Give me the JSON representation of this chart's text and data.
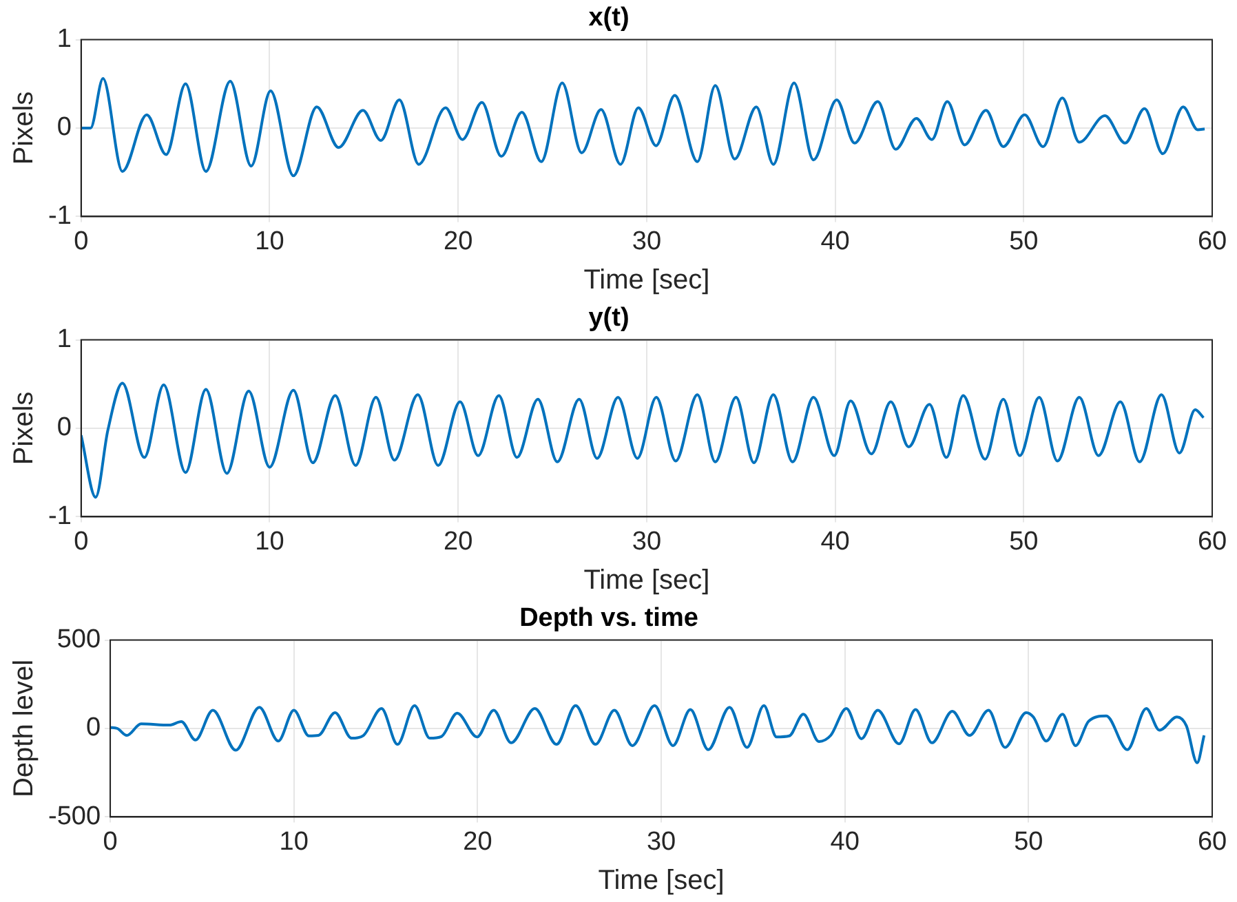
{
  "chart_data": [
    {
      "type": "line",
      "title": "x(t)",
      "xlabel": "Time [sec]",
      "ylabel": "Pixels",
      "color": "#0072bd",
      "grid": true,
      "xlim": [
        0,
        60
      ],
      "xticks": [
        0,
        10,
        20,
        30,
        40,
        50,
        60
      ],
      "ylim": [
        -1,
        1
      ],
      "yticks": [
        -1,
        0,
        1
      ],
      "x": [
        0,
        0.5,
        1.16,
        2.19,
        3.48,
        4.51,
        5.54,
        6.62,
        7.91,
        9.02,
        10.05,
        11.26,
        12.5,
        13.66,
        14.95,
        15.9,
        16.88,
        17.91,
        19.33,
        20.23,
        21.26,
        22.29,
        23.38,
        24.41,
        25.52,
        26.55,
        27.58,
        28.61,
        29.56,
        30.5,
        31.49,
        32.69,
        33.64,
        34.67,
        35.82,
        36.72,
        37.82,
        38.85,
        40.08,
        41.03,
        42.26,
        43.21,
        44.31,
        45.13,
        45.95,
        46.87,
        48.0,
        48.92,
        50.05,
        51.03,
        52.05,
        52.95,
        54.31,
        55.38,
        56.41,
        57.38,
        58.46,
        59.23,
        59.6
      ],
      "values": [
        0,
        0,
        0.56,
        -0.49,
        0.15,
        -0.3,
        0.5,
        -0.49,
        0.53,
        -0.43,
        0.42,
        -0.54,
        0.24,
        -0.22,
        0.2,
        -0.14,
        0.32,
        -0.41,
        0.23,
        -0.13,
        0.29,
        -0.32,
        0.18,
        -0.38,
        0.51,
        -0.28,
        0.21,
        -0.41,
        0.23,
        -0.2,
        0.37,
        -0.38,
        0.48,
        -0.35,
        0.24,
        -0.41,
        0.51,
        -0.36,
        0.32,
        -0.17,
        0.3,
        -0.24,
        0.11,
        -0.13,
        0.3,
        -0.19,
        0.2,
        -0.21,
        0.15,
        -0.21,
        0.34,
        -0.16,
        0.14,
        -0.17,
        0.22,
        -0.29,
        0.24,
        -0.02,
        -0.01
      ]
    },
    {
      "type": "line",
      "title": "y(t)",
      "xlabel": "Time [sec]",
      "ylabel": "Pixels",
      "color": "#0072bd",
      "grid": true,
      "xlim": [
        0,
        60
      ],
      "xticks": [
        0,
        10,
        20,
        30,
        40,
        50,
        60
      ],
      "ylim": [
        -1,
        1
      ],
      "yticks": [
        -1,
        0,
        1
      ],
      "x": [
        0,
        0.77,
        1.42,
        2.19,
        3.35,
        4.38,
        5.54,
        6.62,
        7.73,
        8.89,
        10,
        11.26,
        12.29,
        13.48,
        14.56,
        15.64,
        16.62,
        17.86,
        18.94,
        20.1,
        21.06,
        22.16,
        23.12,
        24.23,
        25.26,
        26.42,
        27.37,
        28.48,
        29.51,
        30.51,
        31.54,
        32.69,
        33.64,
        34.74,
        35.69,
        36.72,
        37.74,
        38.85,
        39.95,
        40.82,
        41.92,
        42.95,
        43.9,
        45,
        45.9,
        46.79,
        47.95,
        48.92,
        49.79,
        50.82,
        51.79,
        52.95,
        53.97,
        55.13,
        56.15,
        57.31,
        58.26,
        59.1,
        59.54
      ],
      "values": [
        -0.08,
        -0.78,
        -0.02,
        0.51,
        -0.33,
        0.49,
        -0.5,
        0.44,
        -0.51,
        0.42,
        -0.44,
        0.43,
        -0.39,
        0.37,
        -0.42,
        0.35,
        -0.36,
        0.38,
        -0.42,
        0.3,
        -0.31,
        0.37,
        -0.33,
        0.33,
        -0.38,
        0.33,
        -0.34,
        0.35,
        -0.34,
        0.35,
        -0.37,
        0.38,
        -0.38,
        0.35,
        -0.39,
        0.38,
        -0.38,
        0.35,
        -0.31,
        0.31,
        -0.29,
        0.3,
        -0.21,
        0.27,
        -0.33,
        0.37,
        -0.35,
        0.33,
        -0.31,
        0.35,
        -0.37,
        0.35,
        -0.31,
        0.3,
        -0.38,
        0.38,
        -0.28,
        0.21,
        0.12
      ]
    },
    {
      "type": "line",
      "title": "Depth vs. time",
      "xlabel": "Time [sec]",
      "ylabel": "Depth level",
      "color": "#0072bd",
      "grid": true,
      "xlim": [
        0,
        60
      ],
      "xticks": [
        0,
        10,
        20,
        30,
        40,
        50,
        60
      ],
      "ylim": [
        -500,
        500
      ],
      "yticks": [
        -500,
        0,
        500
      ],
      "x": [
        0,
        0.39,
        0.9,
        1.68,
        3.22,
        3.87,
        4.64,
        5.59,
        6.83,
        8.12,
        9.15,
        10,
        10.82,
        11.34,
        12.24,
        13.14,
        13.79,
        14.77,
        15.64,
        16.57,
        17.4,
        18.04,
        18.89,
        19.97,
        20.88,
        21.83,
        23.12,
        24.3,
        25.34,
        26.42,
        27.45,
        28.43,
        29.64,
        30.64,
        31.59,
        32.56,
        33.72,
        34.67,
        35.59,
        36.28,
        36.97,
        37.74,
        38.59,
        39.23,
        40.08,
        40.9,
        41.79,
        42.95,
        43.85,
        44.74,
        45.85,
        46.79,
        47.82,
        48.72,
        49.87,
        50.26,
        50.97,
        51.85,
        52.56,
        53.28,
        54.23,
        55.38,
        56.41,
        57.13,
        58.08,
        58.59,
        59.18,
        59.56
      ],
      "values": [
        6,
        0,
        -39,
        26,
        19,
        39,
        -65,
        103,
        -123,
        120,
        -71,
        103,
        -42,
        -39,
        90,
        -55,
        -39,
        113,
        -90,
        129,
        -55,
        -45,
        87,
        -48,
        103,
        -81,
        113,
        -90,
        129,
        -90,
        103,
        -97,
        129,
        -97,
        107,
        -120,
        120,
        -107,
        129,
        -48,
        -42,
        81,
        -74,
        -39,
        113,
        -58,
        103,
        -87,
        107,
        -81,
        97,
        -39,
        103,
        -107,
        90,
        65,
        -71,
        81,
        -97,
        42,
        71,
        -120,
        113,
        -10,
        65,
        16,
        -194,
        -39
      ]
    }
  ]
}
